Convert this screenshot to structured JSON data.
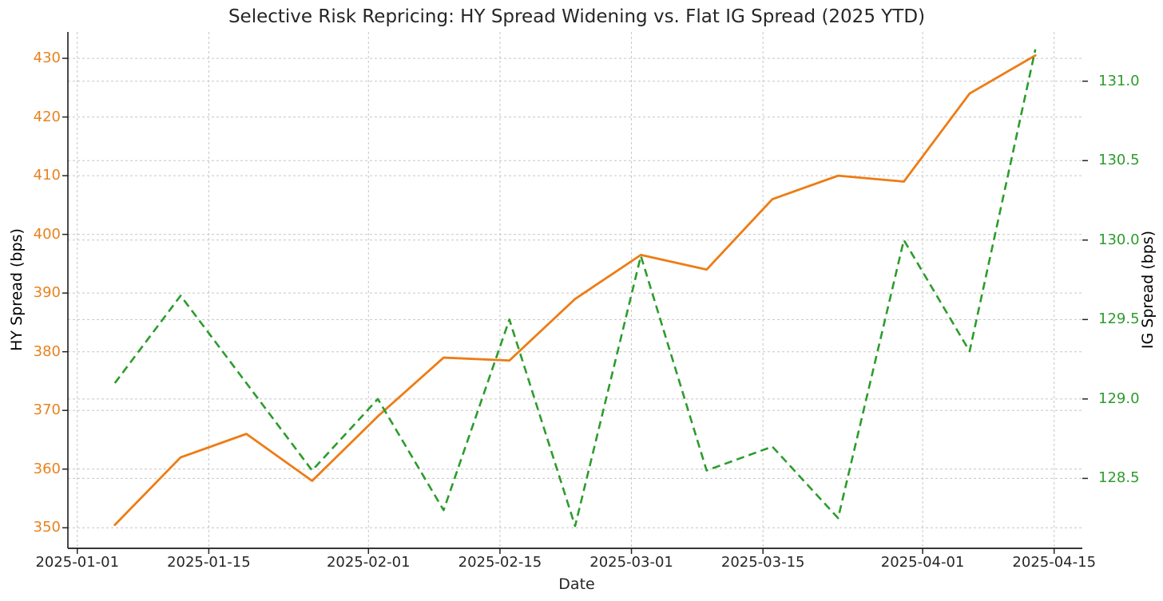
{
  "chart_data": {
    "type": "line",
    "title": "Selective Risk Repricing: HY Spread Widening vs. Flat IG Spread (2025 YTD)",
    "xlabel": "Date",
    "background": "#ffffff",
    "text_color": "#262626",
    "grid": {
      "show": true,
      "color": "#c6c6c6",
      "style": "dashed"
    },
    "x": [
      "2025-01-05",
      "2025-01-12",
      "2025-01-19",
      "2025-01-26",
      "2025-02-02",
      "2025-02-09",
      "2025-02-16",
      "2025-02-23",
      "2025-03-02",
      "2025-03-09",
      "2025-03-16",
      "2025-03-23",
      "2025-03-30",
      "2025-04-06",
      "2025-04-13"
    ],
    "x_days": [
      4,
      11,
      18,
      25,
      32,
      39,
      46,
      53,
      60,
      67,
      74,
      81,
      88,
      95,
      102
    ],
    "x_axis": {
      "tick_labels": [
        "2025-01-01",
        "2025-01-15",
        "2025-02-01",
        "2025-02-15",
        "2025-03-01",
        "2025-03-15",
        "2025-04-01",
        "2025-04-15"
      ],
      "tick_days": [
        0,
        14,
        31,
        45,
        59,
        73,
        90,
        104
      ],
      "lim_days": [
        -1,
        107
      ]
    },
    "left_axis": {
      "label": "HY Spread (bps)",
      "color": "#e8821e",
      "ticks": [
        350,
        360,
        370,
        380,
        390,
        400,
        410,
        420,
        430
      ],
      "lim": [
        346.5,
        434.5
      ]
    },
    "right_axis": {
      "label": "IG Spread (bps)",
      "color": "#2c9c2c",
      "ticks": [
        128.5,
        129.0,
        129.5,
        130.0,
        130.5,
        131.0
      ],
      "lim": [
        128.06,
        131.31
      ]
    },
    "series": [
      {
        "name": "HY Spread (bps)",
        "axis": "left",
        "color": "#ee7c14",
        "line_style": "solid",
        "values": [
          350.5,
          362,
          366,
          358,
          369,
          379,
          378.5,
          389,
          396.5,
          394,
          406,
          410,
          409,
          424,
          430.5
        ]
      },
      {
        "name": "IG Spread (bps)",
        "axis": "right",
        "color": "#2c9c2c",
        "line_style": "dashed",
        "values": [
          129.1,
          129.65,
          129.1,
          128.55,
          129.0,
          128.3,
          129.5,
          128.2,
          129.9,
          128.55,
          128.7,
          128.25,
          130.0,
          129.3,
          131.2
        ]
      }
    ]
  }
}
